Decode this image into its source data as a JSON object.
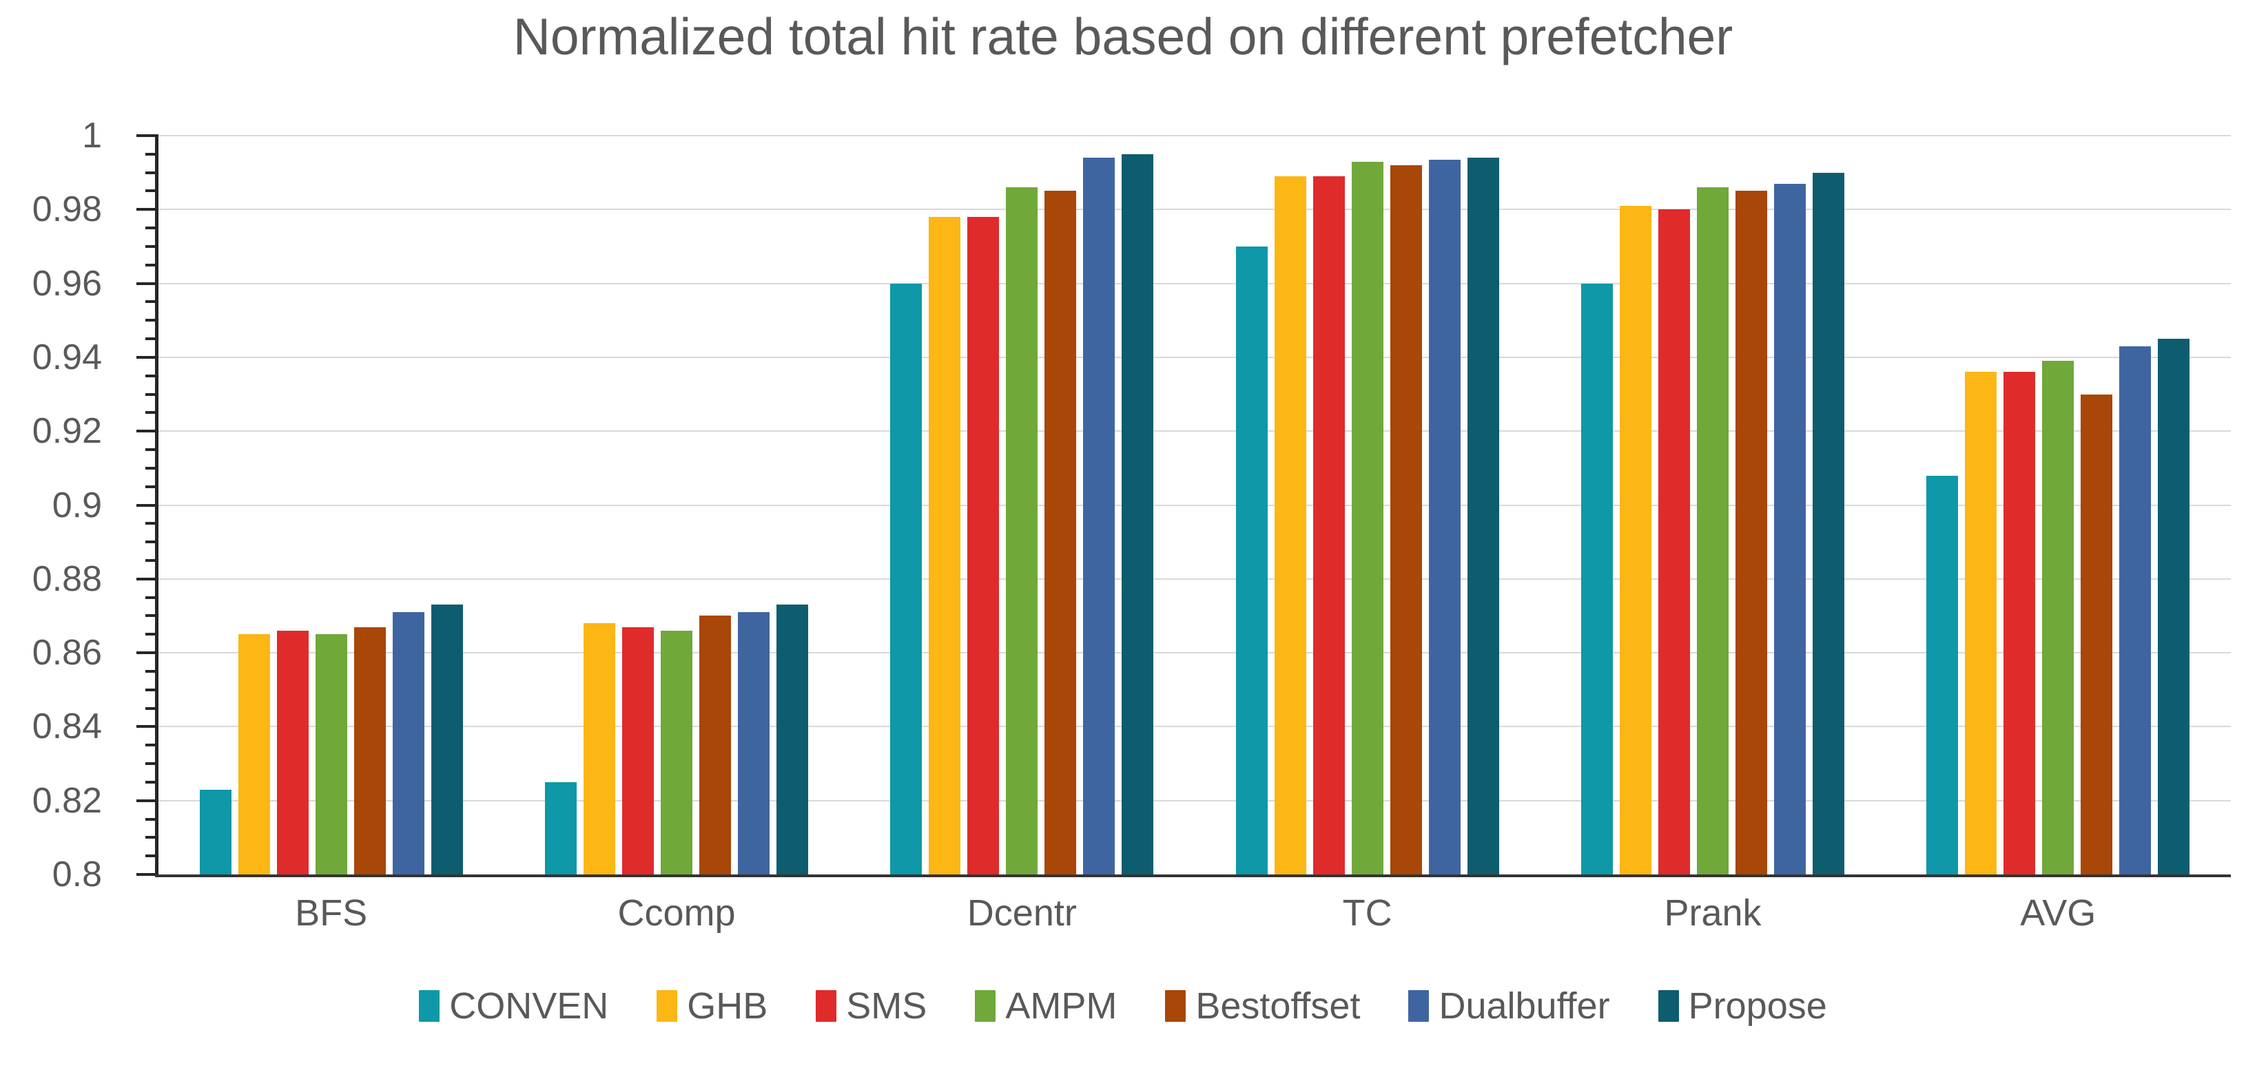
{
  "title": "Normalized total hit rate based on different prefetcher",
  "chart_data": {
    "type": "bar",
    "title": "Normalized total hit rate based on different prefetcher",
    "categories": [
      "BFS",
      "Ccomp",
      "Dcentr",
      "TC",
      "Prank",
      "AVG"
    ],
    "series": [
      {
        "name": "CONVEN",
        "color": "#0e98a8",
        "values": [
          0.823,
          0.825,
          0.96,
          0.97,
          0.96,
          0.908
        ]
      },
      {
        "name": "GHB",
        "color": "#fcb714",
        "values": [
          0.865,
          0.868,
          0.978,
          0.989,
          0.981,
          0.936
        ]
      },
      {
        "name": "SMS",
        "color": "#e02b2b",
        "values": [
          0.866,
          0.867,
          0.978,
          0.989,
          0.98,
          0.936
        ]
      },
      {
        "name": "AMPM",
        "color": "#70a83a",
        "values": [
          0.865,
          0.866,
          0.986,
          0.993,
          0.986,
          0.939
        ]
      },
      {
        "name": "Bestoffset",
        "color": "#a84708",
        "values": [
          0.867,
          0.87,
          0.985,
          0.992,
          0.985,
          0.93
        ]
      },
      {
        "name": "Dualbuffer",
        "color": "#3f65a1",
        "values": [
          0.871,
          0.871,
          0.994,
          0.9935,
          0.987,
          0.943
        ]
      },
      {
        "name": "Propose",
        "color": "#0d5d6f",
        "values": [
          0.873,
          0.873,
          0.995,
          0.994,
          0.99,
          0.945
        ]
      }
    ],
    "xlabel": "",
    "ylabel": "",
    "ylim": [
      0.8,
      1.0
    ],
    "ytick_step": 0.02,
    "ytick_minor_step": 0.005,
    "ytick_labels": [
      "1",
      "0.98",
      "0.96",
      "0.94",
      "0.92",
      "0.9",
      "0.88",
      "0.86",
      "0.84",
      "0.82",
      "0.8"
    ],
    "grid": "horizontal-major",
    "legend_position": "bottom"
  },
  "colors": {
    "background": "#ffffff",
    "title_text": "#595959",
    "axis_label_text": "#595959",
    "axis_line": "#262626",
    "gridline": "#d9d9d9"
  }
}
